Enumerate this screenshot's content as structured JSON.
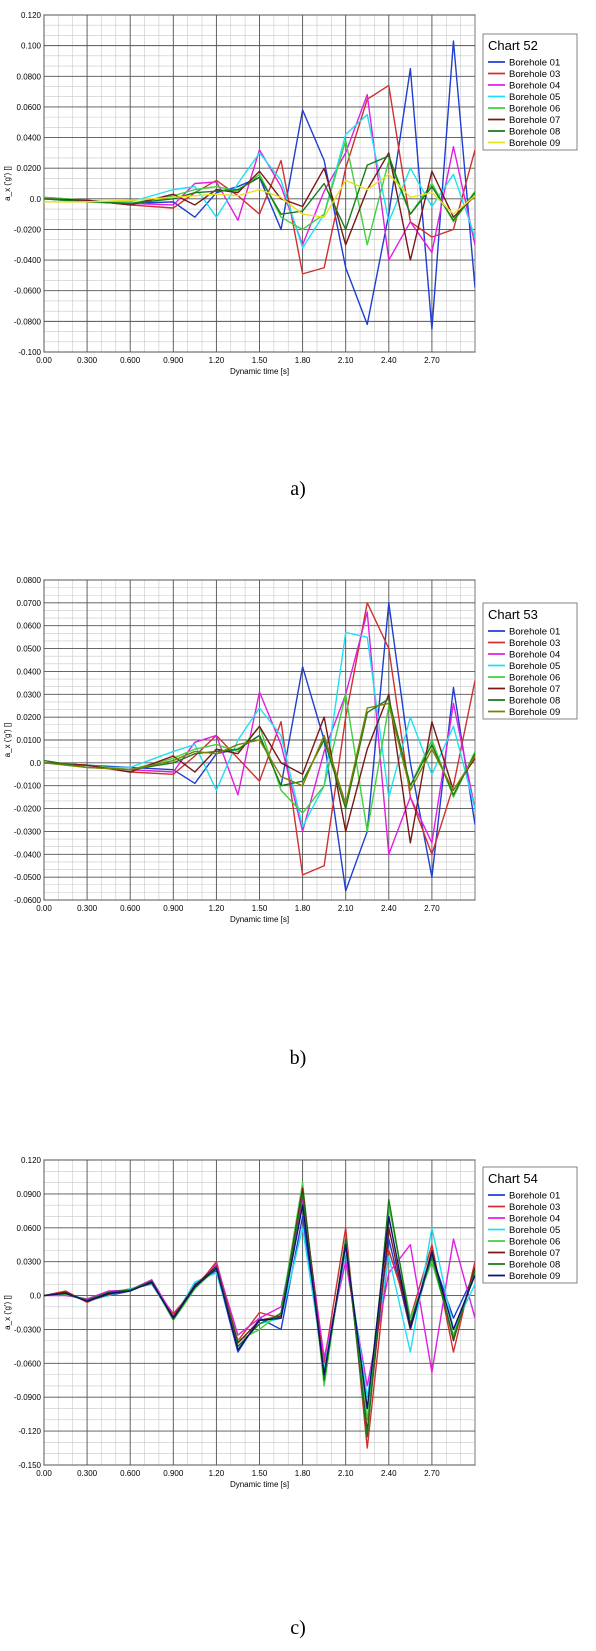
{
  "chart_data": [
    {
      "type": "line",
      "title": "Chart 52",
      "xlabel": "Dynamic time [s]",
      "ylabel": "a_x ('g') []",
      "xlim": [
        0,
        3.0
      ],
      "ylim": [
        -0.1,
        0.12
      ],
      "x_ticks": [
        "0.00",
        "0.300",
        "0.600",
        "0.900",
        "1.20",
        "1.50",
        "1.80",
        "2.10",
        "2.40",
        "2.70"
      ],
      "y_ticks": [
        "0.120",
        "0.100",
        "0.0800",
        "0.0600",
        "0.0400",
        "0.0200",
        "0.0",
        "-0.0200",
        "-0.0400",
        "-0.0600",
        "-0.0800",
        "-0.100"
      ],
      "legend_position": "top-right",
      "caption": "a)",
      "x": [
        0.0,
        0.3,
        0.6,
        0.9,
        1.05,
        1.2,
        1.35,
        1.5,
        1.65,
        1.8,
        1.95,
        2.1,
        2.25,
        2.4,
        2.55,
        2.7,
        2.85,
        3.0
      ],
      "series": [
        {
          "name": "Borehole 01",
          "color": "#1f3fd0",
          "values": [
            0.0,
            -0.002,
            -0.003,
            -0.002,
            -0.012,
            0.004,
            0.008,
            0.014,
            -0.02,
            0.058,
            0.025,
            -0.045,
            -0.082,
            -0.01,
            0.085,
            -0.085,
            0.103,
            -0.058
          ]
        },
        {
          "name": "Borehole 03",
          "color": "#d03030",
          "values": [
            0.001,
            -0.001,
            -0.004,
            -0.006,
            0.004,
            0.012,
            0.002,
            -0.01,
            0.025,
            -0.049,
            -0.045,
            0.02,
            0.065,
            0.074,
            -0.015,
            -0.025,
            -0.02,
            0.032
          ]
        },
        {
          "name": "Borehole 04",
          "color": "#e020e0",
          "values": [
            0.0,
            -0.001,
            -0.003,
            -0.004,
            0.01,
            0.011,
            -0.014,
            0.032,
            0.008,
            -0.03,
            0.005,
            0.03,
            0.068,
            -0.04,
            -0.015,
            -0.035,
            0.034,
            -0.03
          ]
        },
        {
          "name": "Borehole 05",
          "color": "#20e0f0",
          "values": [
            0.0,
            -0.002,
            -0.002,
            0.006,
            0.008,
            -0.012,
            0.01,
            0.03,
            0.012,
            -0.032,
            -0.01,
            0.042,
            0.055,
            -0.015,
            0.02,
            -0.005,
            0.016,
            -0.025
          ]
        },
        {
          "name": "Borehole 06",
          "color": "#40d040",
          "values": [
            0.001,
            -0.001,
            -0.003,
            0.002,
            0.006,
            0.008,
            0.005,
            0.016,
            -0.012,
            -0.02,
            -0.01,
            0.038,
            -0.03,
            0.025,
            -0.01,
            0.01,
            -0.015,
            0.005
          ]
        },
        {
          "name": "Borehole 07",
          "color": "#7a1818",
          "values": [
            0.0,
            -0.001,
            -0.004,
            0.003,
            -0.004,
            0.006,
            0.004,
            0.018,
            0.0,
            -0.005,
            0.02,
            -0.03,
            0.006,
            0.03,
            -0.04,
            0.018,
            -0.012,
            0.002
          ]
        },
        {
          "name": "Borehole 08",
          "color": "#1a7a1a",
          "values": [
            0.0,
            -0.002,
            -0.003,
            0.0,
            0.004,
            0.005,
            0.006,
            0.014,
            -0.01,
            -0.008,
            0.01,
            -0.02,
            0.022,
            0.028,
            -0.01,
            0.008,
            -0.014,
            0.004
          ]
        },
        {
          "name": "Borehole 09",
          "color": "#e8e020",
          "values": [
            -0.002,
            -0.002,
            -0.001,
            0.001,
            0.002,
            0.003,
            0.002,
            0.006,
            0.001,
            -0.01,
            -0.012,
            0.012,
            0.006,
            0.016,
            0.001,
            0.004,
            -0.01,
            0.002
          ]
        }
      ]
    },
    {
      "type": "line",
      "title": "Chart 53",
      "xlabel": "Dynamic time [s]",
      "ylabel": "a_x ('g') []",
      "xlim": [
        0,
        3.0
      ],
      "ylim": [
        -0.06,
        0.08
      ],
      "x_ticks": [
        "0.00",
        "0.300",
        "0.600",
        "0.900",
        "1.20",
        "1.50",
        "1.80",
        "2.10",
        "2.40",
        "2.70"
      ],
      "y_ticks": [
        "0.0800",
        "0.0700",
        "0.0600",
        "0.0500",
        "0.0400",
        "0.0300",
        "0.0200",
        "0.0100",
        "0.0",
        "-0.0100",
        "-0.0200",
        "-0.0300",
        "-0.0400",
        "-0.0500",
        "-0.0600"
      ],
      "legend_position": "top-right",
      "caption": "b)",
      "x": [
        0.0,
        0.3,
        0.6,
        0.9,
        1.05,
        1.2,
        1.35,
        1.5,
        1.65,
        1.8,
        1.95,
        2.1,
        2.25,
        2.4,
        2.55,
        2.7,
        2.85,
        3.0
      ],
      "series": [
        {
          "name": "Borehole 01",
          "color": "#1f3fd0",
          "values": [
            0.0,
            -0.001,
            -0.002,
            -0.003,
            -0.009,
            0.004,
            0.006,
            0.012,
            -0.01,
            0.042,
            0.01,
            -0.056,
            -0.03,
            0.07,
            0.0,
            -0.05,
            0.033,
            -0.027
          ]
        },
        {
          "name": "Borehole 03",
          "color": "#d03030",
          "values": [
            0.0,
            -0.001,
            -0.004,
            -0.005,
            0.003,
            0.012,
            0.002,
            -0.008,
            0.018,
            -0.049,
            -0.045,
            0.02,
            0.07,
            0.05,
            -0.015,
            -0.04,
            -0.01,
            0.036
          ]
        },
        {
          "name": "Borehole 04",
          "color": "#e020e0",
          "values": [
            0.0,
            -0.001,
            -0.003,
            -0.004,
            0.009,
            0.012,
            -0.014,
            0.031,
            0.008,
            -0.03,
            0.005,
            0.03,
            0.066,
            -0.04,
            -0.015,
            -0.035,
            0.026,
            -0.02
          ]
        },
        {
          "name": "Borehole 05",
          "color": "#20e0f0",
          "values": [
            0.0,
            -0.002,
            -0.002,
            0.005,
            0.008,
            -0.012,
            0.01,
            0.024,
            0.012,
            -0.028,
            -0.01,
            0.057,
            0.055,
            -0.015,
            0.02,
            -0.005,
            0.016,
            -0.02
          ]
        },
        {
          "name": "Borehole 06",
          "color": "#40d040",
          "values": [
            0.0,
            -0.001,
            -0.003,
            0.002,
            0.006,
            0.008,
            0.005,
            0.016,
            -0.012,
            -0.022,
            -0.01,
            0.03,
            -0.03,
            0.025,
            -0.01,
            0.01,
            -0.015,
            0.005
          ]
        },
        {
          "name": "Borehole 07",
          "color": "#7a1818",
          "values": [
            0.0,
            -0.001,
            -0.004,
            0.003,
            -0.004,
            0.006,
            0.004,
            0.016,
            0.0,
            -0.005,
            0.02,
            -0.03,
            0.006,
            0.03,
            -0.035,
            0.018,
            -0.012,
            0.002
          ]
        },
        {
          "name": "Borehole 08",
          "color": "#1a7a1a",
          "values": [
            0.001,
            -0.002,
            -0.003,
            0.0,
            0.004,
            0.005,
            0.006,
            0.012,
            -0.01,
            -0.008,
            0.01,
            -0.02,
            0.022,
            0.028,
            -0.01,
            0.008,
            -0.014,
            0.004
          ]
        },
        {
          "name": "Borehole 09",
          "color": "#808000",
          "values": [
            0.0,
            -0.002,
            -0.003,
            0.001,
            0.005,
            0.004,
            0.008,
            0.01,
            -0.006,
            -0.01,
            0.012,
            -0.018,
            0.024,
            0.026,
            -0.012,
            0.006,
            -0.012,
            0.003
          ]
        }
      ]
    },
    {
      "type": "line",
      "title": "Chart 54",
      "xlabel": "Dynamic time [s]",
      "ylabel": "a_x ('g') []",
      "xlim": [
        0,
        3.0
      ],
      "ylim": [
        -0.15,
        0.12
      ],
      "x_ticks": [
        "0.00",
        "0.300",
        "0.600",
        "0.900",
        "1.20",
        "1.50",
        "1.80",
        "2.10",
        "2.40",
        "2.70"
      ],
      "y_ticks": [
        "0.120",
        "0.0900",
        "0.0600",
        "0.0300",
        "0.0",
        "-0.0300",
        "-0.0600",
        "-0.0900",
        "-0.120",
        "-0.150"
      ],
      "legend_position": "top-right",
      "caption": "c)",
      "x": [
        0.0,
        0.15,
        0.3,
        0.45,
        0.6,
        0.75,
        0.9,
        1.05,
        1.2,
        1.35,
        1.5,
        1.65,
        1.8,
        1.95,
        2.1,
        2.25,
        2.4,
        2.55,
        2.7,
        2.85,
        3.0
      ],
      "series": [
        {
          "name": "Borehole 01",
          "color": "#1f3fd0",
          "values": [
            0.0,
            0.002,
            -0.004,
            0.0,
            0.004,
            0.012,
            -0.02,
            0.01,
            0.022,
            -0.05,
            -0.02,
            -0.03,
            0.07,
            -0.07,
            0.04,
            -0.1,
            0.05,
            -0.03,
            0.035,
            -0.02,
            0.02
          ]
        },
        {
          "name": "Borehole 03",
          "color": "#d03030",
          "values": [
            0.0,
            0.004,
            -0.006,
            0.002,
            0.006,
            0.01,
            -0.016,
            0.006,
            0.03,
            -0.04,
            -0.015,
            -0.02,
            0.09,
            -0.06,
            0.06,
            -0.135,
            0.04,
            -0.02,
            0.045,
            -0.05,
            0.03
          ]
        },
        {
          "name": "Borehole 04",
          "color": "#e020e0",
          "values": [
            0.0,
            0.0,
            -0.003,
            0.004,
            0.005,
            0.014,
            -0.018,
            0.008,
            0.028,
            -0.035,
            -0.02,
            -0.01,
            0.085,
            -0.055,
            0.03,
            -0.08,
            0.02,
            0.045,
            -0.068,
            0.05,
            -0.02
          ]
        },
        {
          "name": "Borehole 05",
          "color": "#20e0f0",
          "values": [
            0.0,
            0.002,
            -0.005,
            0.0,
            0.006,
            0.01,
            -0.02,
            0.012,
            0.02,
            -0.045,
            -0.025,
            -0.02,
            0.06,
            -0.065,
            0.04,
            -0.09,
            0.035,
            -0.05,
            0.06,
            -0.03,
            0.01
          ]
        },
        {
          "name": "Borehole 06",
          "color": "#40d040",
          "values": [
            0.0,
            0.001,
            -0.004,
            0.002,
            0.004,
            0.012,
            -0.022,
            0.006,
            0.024,
            -0.04,
            -0.03,
            -0.015,
            0.1,
            -0.08,
            0.05,
            -0.11,
            0.08,
            -0.02,
            0.03,
            -0.035,
            0.02
          ]
        },
        {
          "name": "Borehole 07",
          "color": "#7a1818",
          "values": [
            0.0,
            0.003,
            -0.005,
            0.001,
            0.005,
            0.011,
            -0.019,
            0.009,
            0.026,
            -0.042,
            -0.022,
            -0.018,
            0.095,
            -0.07,
            0.045,
            -0.12,
            0.06,
            -0.03,
            0.04,
            -0.04,
            0.025
          ]
        },
        {
          "name": "Borehole 08",
          "color": "#1a7a1a",
          "values": [
            0.0,
            0.002,
            -0.004,
            0.003,
            0.005,
            0.013,
            -0.021,
            0.007,
            0.025,
            -0.045,
            -0.025,
            -0.016,
            0.09,
            -0.075,
            0.05,
            -0.125,
            0.085,
            -0.025,
            0.035,
            -0.038,
            0.022
          ]
        },
        {
          "name": "Borehole 09",
          "color": "#101070",
          "values": [
            0.0,
            0.002,
            -0.005,
            0.002,
            0.004,
            0.012,
            -0.02,
            0.008,
            0.024,
            -0.048,
            -0.022,
            -0.02,
            0.08,
            -0.07,
            0.045,
            -0.1,
            0.07,
            -0.028,
            0.038,
            -0.03,
            0.018
          ]
        }
      ]
    }
  ]
}
